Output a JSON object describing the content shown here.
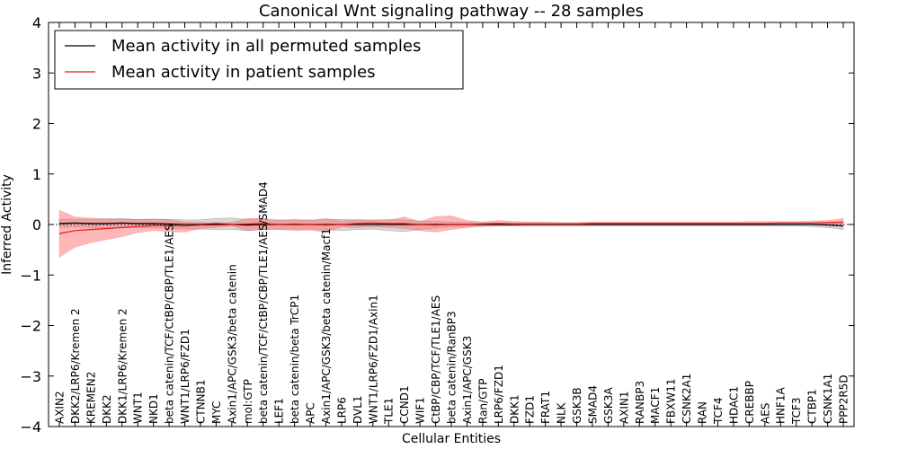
{
  "chart_data": {
    "type": "line",
    "title": "Canonical Wnt signaling pathway -- 28 samples",
    "xlabel": "Cellular Entities",
    "ylabel": "Inferred Activity",
    "ylim": [
      -4,
      4
    ],
    "yticks": [
      -4,
      -3,
      -2,
      -1,
      0,
      1,
      2,
      3,
      4
    ],
    "ytick_labels": [
      "−4",
      "−3",
      "−2",
      "−1",
      "0",
      "1",
      "2",
      "3",
      "4"
    ],
    "grid": false,
    "legend_position": "top-left",
    "categories": [
      "AXIN2",
      "DKK2/LRP6/Kremen 2",
      "KREMEN2",
      "DKK2",
      "DKK1/LRP6/Kremen 2",
      "WNT1",
      "NKD1",
      "beta catenin/TCF/CtBP/CBP/TLE1/AES",
      "WNT1/LRP6/FZD1",
      "CTNNB1",
      "MYC",
      "Axin1/APC/GSK3/beta catenin",
      "mol:GTP",
      "beta catenin/TCF/CtBP/CBP/TLE1/AES/SMAD4",
      "LEF1",
      "beta catenin/beta TrCP1",
      "APC",
      "Axin1/APC/GSK3/beta catenin/Macf1",
      "LRP6",
      "DVL1",
      "WNT1/LRP6/FZD1/Axin1",
      "TLE1",
      "CCND1",
      "WIF1",
      "CtBP/CBP/TCF/TLE1/AES",
      "beta catenin/RanBP3",
      "Axin1/APC/GSK3",
      "Ran/GTP",
      "LRP6/FZD1",
      "DKK1",
      "FZD1",
      "FRAT1",
      "NLK",
      "GSK3B",
      "SMAD4",
      "GSK3A",
      "AXIN1",
      "RANBP3",
      "MACF1",
      "FBXW11",
      "CSNK2A1",
      "RAN",
      "TCF4",
      "HDAC1",
      "CREBBP",
      "AES",
      "HNF1A",
      "TCF3",
      "CTBP1",
      "CSNK1A1",
      "PPP2R5D"
    ],
    "series": [
      {
        "name": "Mean activity in all permuted samples",
        "color": "#000000",
        "values": [
          0.02,
          0.03,
          0.02,
          0.02,
          0.03,
          0.02,
          0.02,
          0.01,
          0.0,
          0.0,
          0.01,
          0.0,
          -0.01,
          0.0,
          0.0,
          0.0,
          0.0,
          0.0,
          0.0,
          0.0,
          0.0,
          0.0,
          0.0,
          0.0,
          0.0,
          0.0,
          0.0,
          0.0,
          0.0,
          0.0,
          0.0,
          0.0,
          0.0,
          0.0,
          0.0,
          0.0,
          0.0,
          0.0,
          0.0,
          0.0,
          0.0,
          0.0,
          0.0,
          0.0,
          0.0,
          0.0,
          0.0,
          0.0,
          0.0,
          -0.01,
          -0.03
        ],
        "lower": [
          -0.06,
          -0.05,
          -0.06,
          -0.07,
          -0.06,
          -0.06,
          -0.07,
          -0.08,
          -0.09,
          -0.09,
          -0.1,
          -0.1,
          -0.12,
          -0.1,
          -0.09,
          -0.09,
          -0.09,
          -0.1,
          -0.12,
          -0.1,
          -0.09,
          -0.12,
          -0.14,
          -0.1,
          -0.07,
          -0.05,
          -0.04,
          -0.04,
          -0.03,
          -0.03,
          -0.03,
          -0.03,
          -0.03,
          -0.03,
          -0.03,
          -0.03,
          -0.03,
          -0.03,
          -0.03,
          -0.03,
          -0.03,
          -0.03,
          -0.03,
          -0.03,
          -0.03,
          -0.03,
          -0.03,
          -0.03,
          -0.04,
          -0.06,
          -0.1
        ],
        "upper": [
          0.1,
          0.11,
          0.1,
          0.11,
          0.12,
          0.1,
          0.11,
          0.1,
          0.09,
          0.09,
          0.12,
          0.13,
          0.1,
          0.1,
          0.09,
          0.09,
          0.09,
          0.1,
          0.1,
          0.09,
          0.09,
          0.1,
          0.09,
          0.07,
          0.06,
          0.05,
          0.04,
          0.03,
          0.03,
          0.03,
          0.03,
          0.03,
          0.03,
          0.03,
          0.03,
          0.03,
          0.03,
          0.03,
          0.03,
          0.03,
          0.03,
          0.03,
          0.03,
          0.03,
          0.03,
          0.03,
          0.03,
          0.03,
          0.03,
          0.03,
          0.04
        ],
        "band_color": "#b0b0b0"
      },
      {
        "name": "Mean activity in patient samples",
        "color": "#e41a1c",
        "values": [
          -0.18,
          -0.12,
          -0.1,
          -0.08,
          -0.06,
          -0.04,
          -0.02,
          -0.02,
          -0.03,
          -0.01,
          -0.01,
          0.0,
          0.01,
          0.02,
          0.0,
          0.01,
          0.0,
          -0.01,
          0.0,
          0.02,
          0.03,
          0.02,
          0.02,
          0.0,
          -0.01,
          0.0,
          0.0,
          0.01,
          0.02,
          0.01,
          0.01,
          0.01,
          0.01,
          0.01,
          0.02,
          0.02,
          0.02,
          0.02,
          0.02,
          0.02,
          0.02,
          0.02,
          0.02,
          0.02,
          0.02,
          0.02,
          0.03,
          0.03,
          0.03,
          0.04,
          0.05
        ],
        "lower": [
          -0.65,
          -0.45,
          -0.36,
          -0.3,
          -0.24,
          -0.16,
          -0.12,
          -0.14,
          -0.15,
          -0.08,
          -0.06,
          -0.03,
          -0.12,
          -0.1,
          -0.1,
          -0.12,
          -0.11,
          -0.15,
          -0.05,
          -0.06,
          -0.04,
          -0.06,
          -0.08,
          -0.12,
          -0.15,
          -0.1,
          -0.06,
          -0.02,
          -0.02,
          -0.02,
          0.0,
          0.0,
          0.0,
          0.0,
          0.0,
          0.0,
          0.0,
          0.0,
          0.0,
          0.0,
          0.0,
          0.0,
          0.0,
          0.0,
          0.0,
          0.0,
          0.0,
          0.0,
          0.0,
          0.0,
          0.0
        ],
        "upper": [
          0.28,
          0.15,
          0.13,
          0.11,
          0.1,
          0.1,
          0.1,
          0.1,
          0.05,
          0.04,
          0.04,
          0.04,
          0.12,
          0.12,
          0.08,
          0.1,
          0.08,
          0.12,
          0.07,
          0.1,
          0.08,
          0.08,
          0.15,
          0.06,
          0.16,
          0.17,
          0.08,
          0.05,
          0.08,
          0.06,
          0.05,
          0.05,
          0.04,
          0.04,
          0.05,
          0.05,
          0.05,
          0.05,
          0.05,
          0.05,
          0.05,
          0.05,
          0.05,
          0.05,
          0.06,
          0.06,
          0.06,
          0.06,
          0.07,
          0.08,
          0.12
        ],
        "band_color": "#ff7070"
      }
    ]
  }
}
